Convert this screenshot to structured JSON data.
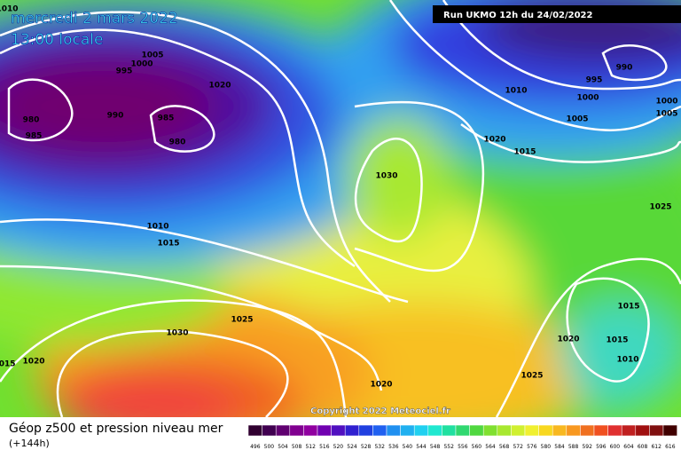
{
  "header": {
    "date": "mercredi 2 mars 2022",
    "time": "13:00 locale",
    "run": "Run UKMO 12h du 24/02/2022"
  },
  "isobars": [
    "1010",
    "1005",
    "995",
    "1000",
    "980",
    "985",
    "990",
    "985",
    "980",
    "1020",
    "1030",
    "1010",
    "1015",
    "1025",
    "1030",
    "1015",
    "1020",
    "1020",
    "1025",
    "1020",
    "1015",
    "1010",
    "1015",
    "1025",
    "1010",
    "1020",
    "1015",
    "1005",
    "1000",
    "1000",
    "995",
    "990",
    "1005"
  ],
  "footer": {
    "title": "Géop z500 et pression niveau mer",
    "lead": "(+144h)",
    "copyright": "Copyright 2022 Meteociel.fr"
  },
  "scale": {
    "labels": [
      496,
      500,
      504,
      508,
      512,
      516,
      520,
      524,
      528,
      532,
      536,
      540,
      544,
      548,
      552,
      556,
      560,
      564,
      568,
      572,
      576,
      580,
      584,
      588,
      592,
      596,
      600,
      604,
      608,
      612,
      616
    ]
  }
}
